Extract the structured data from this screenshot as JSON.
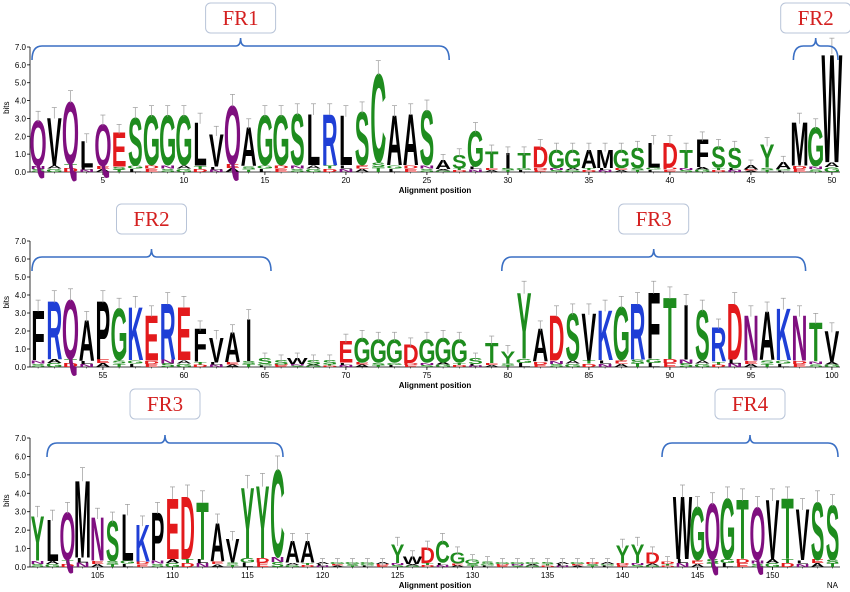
{
  "chart_data": {
    "type": "sequence-logo",
    "ylabel": "bits",
    "xlabel": "Alignment position",
    "ylim": [
      0,
      7
    ],
    "yticks": [
      "0.0",
      "1.0",
      "2.0",
      "3.0",
      "4.0",
      "5.0",
      "6.0",
      "7.0"
    ],
    "colors": {
      "polar": "#1e8c1e",
      "hydrophobic": "#000000",
      "acidic": "#e31a1c",
      "basic": "#1f3fd6",
      "amide": "#7f0f7f"
    },
    "footnote": "NA",
    "panels": [
      {
        "x_start": 1,
        "x_end": 50,
        "xticks": [
          "5",
          "10",
          "15",
          "20",
          "25",
          "30",
          "35",
          "40",
          "45",
          "50"
        ],
        "regions": [
          {
            "label": "FR1",
            "from": 1,
            "to": 26
          },
          {
            "label": "FR2",
            "from": 48,
            "to": 50
          }
        ],
        "letters": [
          "Q",
          "V",
          "Q",
          "L",
          "Q",
          "E",
          "S",
          "G",
          "G",
          "G",
          "L",
          "V",
          "Q",
          "A",
          "G",
          "G",
          "S",
          "L",
          "R",
          "L",
          "S",
          "C",
          "A",
          "A",
          "S",
          "A",
          "S",
          "G",
          "T",
          "I",
          "T",
          "D",
          "G",
          "G",
          "A",
          "M",
          "G",
          "S",
          "L",
          "D",
          "T",
          "F",
          "S",
          "S",
          "A",
          "Y",
          "A",
          "M",
          "G",
          "W"
        ],
        "heights": [
          3.0,
          3.2,
          4.1,
          1.8,
          2.8,
          2.3,
          3.2,
          3.3,
          3.3,
          3.3,
          2.9,
          2.2,
          3.9,
          2.6,
          3.3,
          3.3,
          3.4,
          3.4,
          3.4,
          3.3,
          3.5,
          5.7,
          3.3,
          3.4,
          3.6,
          0.7,
          1.0,
          2.4,
          1.2,
          1.1,
          1.1,
          1.5,
          1.3,
          1.3,
          1.3,
          1.3,
          1.3,
          1.4,
          1.7,
          1.7,
          1.3,
          1.9,
          1.5,
          1.4,
          0.4,
          1.6,
          0.6,
          2.9,
          2.6,
          6.9
        ]
      },
      {
        "x_start": 51,
        "x_end": 100,
        "xticks": [
          "55",
          "60",
          "65",
          "70",
          "75",
          "80",
          "85",
          "90",
          "95",
          "100"
        ],
        "regions": [
          {
            "label": "FR2",
            "from": 51,
            "to": 65
          },
          {
            "label": "FR3",
            "from": 80,
            "to": 98
          }
        ],
        "letters": [
          "F",
          "R",
          "Q",
          "A",
          "P",
          "G",
          "K",
          "E",
          "R",
          "E",
          "F",
          "V",
          "A",
          "I",
          "S",
          "S",
          "W",
          "S",
          "S",
          "E",
          "G",
          "G",
          "G",
          "D",
          "G",
          "G",
          "G",
          "S",
          "T",
          "Y",
          "Y",
          "A",
          "D",
          "S",
          "V",
          "K",
          "G",
          "R",
          "F",
          "T",
          "I",
          "S",
          "R",
          "D",
          "N",
          "A",
          "K",
          "N",
          "T",
          "V"
        ],
        "heights": [
          3.3,
          3.8,
          3.9,
          2.7,
          3.8,
          3.4,
          3.5,
          3.0,
          3.7,
          3.5,
          2.2,
          1.7,
          2.0,
          2.8,
          0.5,
          0.4,
          0.5,
          0.4,
          0.4,
          1.5,
          1.7,
          1.6,
          1.6,
          1.3,
          1.6,
          1.7,
          1.6,
          0.5,
          1.4,
          0.9,
          4.3,
          2.2,
          3.0,
          3.1,
          3.1,
          3.3,
          3.5,
          3.7,
          4.3,
          4.0,
          3.6,
          3.3,
          2.3,
          3.7,
          3.0,
          3.2,
          3.4,
          3.0,
          2.6,
          2.1
        ]
      },
      {
        "x_start": 101,
        "x_end": 154,
        "xticks": [
          "105",
          "110",
          "115",
          "120",
          "125",
          "130",
          "135",
          "140",
          "145",
          "150"
        ],
        "regions": [
          {
            "label": "FR3",
            "from": 102,
            "to": 117
          },
          {
            "label": "FR4",
            "from": 143,
            "to": 154
          }
        ],
        "letters": [
          "Y",
          "L",
          "Q",
          "M",
          "N",
          "S",
          "L",
          "K",
          "P",
          "E",
          "D",
          "T",
          "A",
          "V",
          "Y",
          "Y",
          "C",
          "A",
          "A",
          "A",
          "G",
          "G",
          "G",
          "A",
          "Y",
          "W",
          "D",
          "C",
          "G",
          "G",
          "S",
          "G",
          "G",
          "G",
          "S",
          "A",
          "G",
          "D",
          "A",
          "Y",
          "Y",
          "D",
          "D",
          "W",
          "G",
          "Q",
          "G",
          "T",
          "Q",
          "V",
          "T",
          "V",
          "S",
          "S"
        ],
        "heights": [
          2.9,
          2.7,
          3.1,
          4.9,
          2.8,
          2.6,
          3.0,
          2.4,
          3.1,
          3.9,
          4.0,
          3.7,
          2.5,
          1.6,
          4.5,
          4.6,
          5.5,
          1.5,
          1.5,
          0.2,
          0.2,
          0.2,
          0.2,
          0.2,
          1.3,
          0.6,
          1.1,
          1.5,
          0.8,
          0.4,
          0.3,
          0.2,
          0.2,
          0.2,
          0.2,
          0.2,
          0.2,
          0.2,
          0.2,
          1.2,
          1.3,
          0.8,
          0.3,
          4.0,
          3.4,
          3.6,
          3.9,
          3.8,
          3.4,
          3.8,
          3.9,
          3.3,
          3.7,
          3.5
        ]
      }
    ]
  }
}
